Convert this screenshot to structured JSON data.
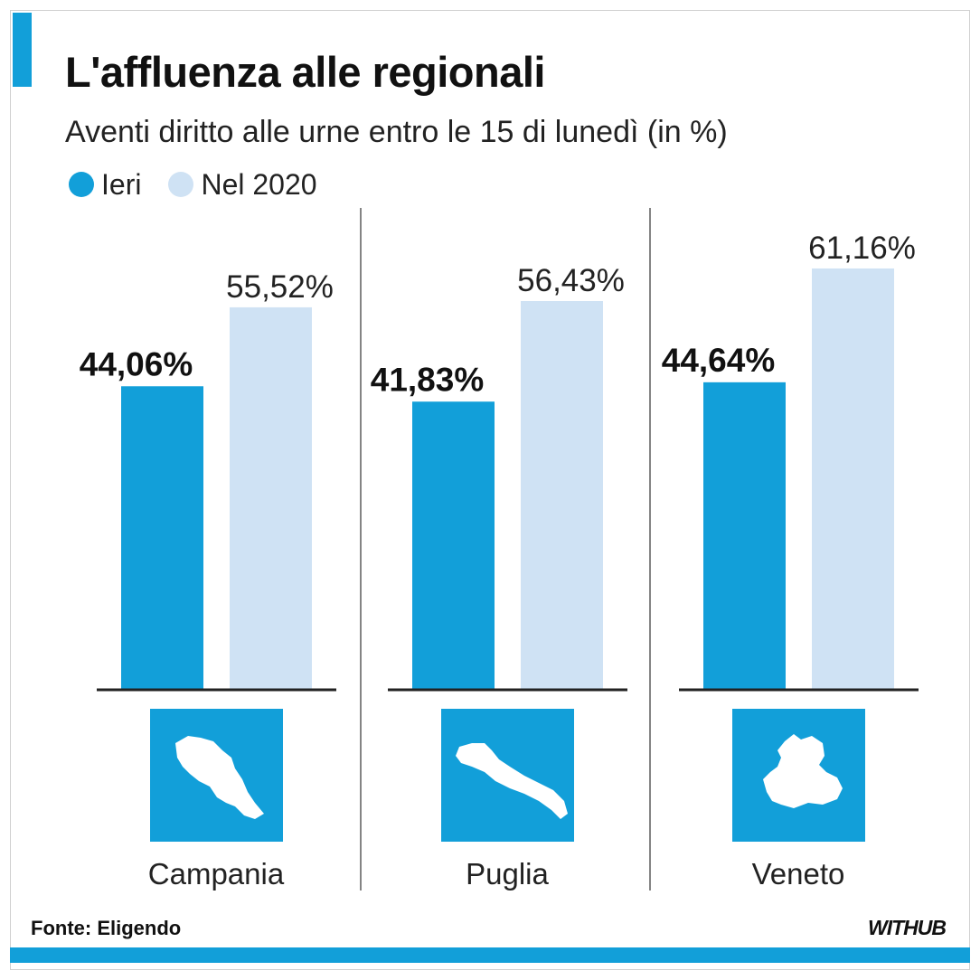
{
  "header": {
    "title": "L'affluenza alle regionali",
    "subtitle": "Aventi diritto alle urne entro le 15 di lunedì (in %)"
  },
  "legend": {
    "current": "Ieri",
    "previous": "Nel 2020"
  },
  "colors": {
    "accent": "#129fd9",
    "previous": "#cfe2f4",
    "text": "#111111"
  },
  "chart_data": {
    "type": "bar",
    "title": "L'affluenza alle regionali",
    "subtitle": "Aventi diritto alle urne entro le 15 di lunedì (in %)",
    "categories": [
      "Campania",
      "Puglia",
      "Veneto"
    ],
    "series": [
      {
        "name": "Ieri",
        "values": [
          44.06,
          41.83,
          44.64
        ],
        "labels": [
          "44,06%",
          "41,83%",
          "44,64%"
        ]
      },
      {
        "name": "Nel 2020",
        "values": [
          55.52,
          56.43,
          61.16
        ],
        "labels": [
          "55,52%",
          "56,43%",
          "61,16%"
        ]
      }
    ],
    "ylim": [
      0,
      100
    ],
    "grid": false,
    "legend_position": "top-left",
    "region_icons": [
      "campania-map-icon",
      "puglia-map-icon",
      "veneto-map-icon"
    ]
  },
  "footer": {
    "source": "Fonte: Eligendo",
    "brand": "WITHUB"
  }
}
